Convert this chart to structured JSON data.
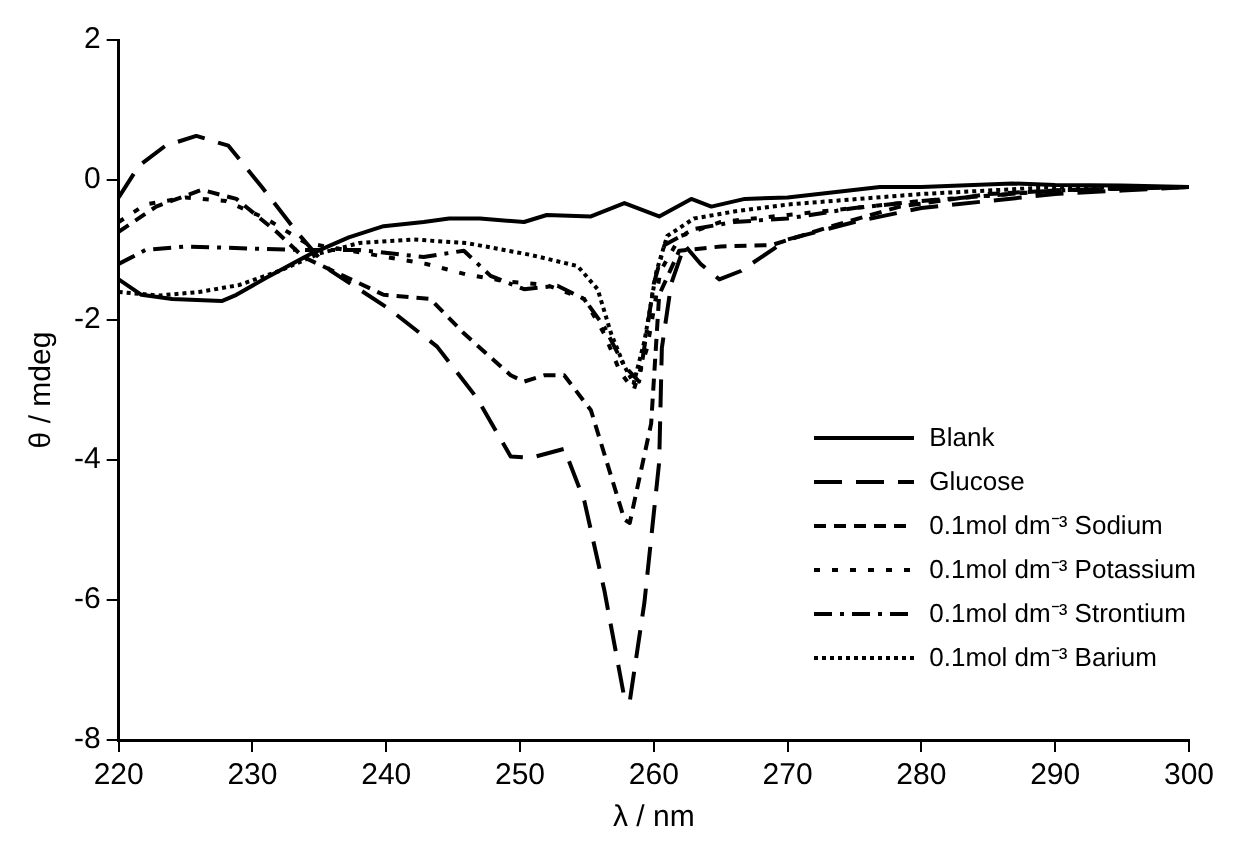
{
  "chart_data": {
    "type": "line",
    "xlabel": "λ / nm",
    "ylabel": "θ / mdeg",
    "xlim": [
      220,
      300
    ],
    "xticks": [
      220,
      230,
      240,
      250,
      260,
      270,
      280,
      290,
      300
    ],
    "ylim": [
      -8,
      2
    ],
    "yticks": [
      -8,
      -6,
      -4,
      -2,
      0,
      2
    ],
    "grid": false,
    "legend": "right",
    "marker": "none",
    "series": [
      {
        "name": "Blank",
        "color": "#000000",
        "line_style": "solid",
        "x": [
          220,
          221.7,
          224,
          227.7,
          228.8,
          231,
          234.2,
          237.2,
          239.8,
          242.8,
          244.7,
          247,
          250.3,
          252,
          255.3,
          257.8,
          260.4,
          262.8,
          264.3,
          266.8,
          270,
          272.8,
          276.9,
          280,
          286.8,
          290,
          295,
          300
        ],
        "values": [
          -1.42,
          -1.64,
          -1.7,
          -1.73,
          -1.64,
          -1.4,
          -1.07,
          -0.82,
          -0.66,
          -0.6,
          -0.55,
          -0.55,
          -0.6,
          -0.5,
          -0.52,
          -0.33,
          -0.52,
          -0.27,
          -0.38,
          -0.27,
          -0.25,
          -0.19,
          -0.1,
          -0.1,
          -0.05,
          -0.07,
          -0.08,
          -0.1
        ]
      },
      {
        "name": "Glucose",
        "color": "#000000",
        "line_style": "dashed",
        "x": [
          220,
          221.5,
          223.5,
          225.8,
          228.2,
          230.7,
          233.3,
          235.8,
          240.2,
          243.8,
          246.8,
          249.3,
          250.8,
          253.3,
          254.8,
          256.3,
          257.8,
          258.2,
          259.3,
          260.4,
          260.6,
          261.3,
          262.3,
          263.5,
          264.9,
          266.5,
          270,
          275,
          280,
          285,
          290,
          295,
          300
        ],
        "values": [
          -0.25,
          0.2,
          0.49,
          0.63,
          0.49,
          -0.1,
          -0.74,
          -1.29,
          -1.84,
          -2.38,
          -3.12,
          -3.95,
          -3.97,
          -3.84,
          -4.58,
          -5.86,
          -7.4,
          -7.45,
          -6.03,
          -4.03,
          -2.4,
          -1.48,
          -0.93,
          -1.2,
          -1.42,
          -1.3,
          -0.85,
          -0.6,
          -0.4,
          -0.3,
          -0.2,
          -0.15,
          -0.1
        ]
      },
      {
        "name": "0.1mol dm⁻³ Sodium",
        "color": "#000000",
        "line_style": "dashed",
        "x": [
          220,
          222.8,
          226.2,
          228.8,
          231.8,
          233.8,
          236.8,
          239.8,
          243.3,
          245.8,
          249.3,
          250.3,
          251.8,
          253.3,
          255.3,
          257.8,
          258.2,
          259.8,
          260.4,
          261.9,
          265,
          268.8,
          273.3,
          278.4,
          285,
          290,
          295,
          300
        ],
        "values": [
          -0.74,
          -0.38,
          -0.14,
          -0.27,
          -0.74,
          -1.1,
          -1.37,
          -1.64,
          -1.7,
          -2.19,
          -2.79,
          -2.88,
          -2.79,
          -2.79,
          -3.29,
          -4.85,
          -4.9,
          -3.48,
          -1.64,
          -1.01,
          -0.95,
          -0.93,
          -0.66,
          -0.38,
          -0.2,
          -0.15,
          -0.12,
          -0.1
        ]
      },
      {
        "name": "0.1mol dm⁻³ Potassium",
        "color": "#000000",
        "line_style": "dotted",
        "x": [
          220,
          222,
          225,
          228,
          231,
          234,
          237,
          240,
          243,
          246,
          249,
          252,
          254.8,
          256.3,
          257.5,
          258.5,
          259.5,
          260.5,
          262,
          265,
          270,
          275,
          280,
          290,
          300
        ],
        "values": [
          -0.6,
          -0.35,
          -0.25,
          -0.3,
          -0.55,
          -0.9,
          -1.0,
          -1.1,
          -1.2,
          -1.35,
          -1.45,
          -1.5,
          -1.7,
          -2.2,
          -2.75,
          -3.0,
          -2.4,
          -1.3,
          -0.8,
          -0.6,
          -0.5,
          -0.4,
          -0.3,
          -0.15,
          -0.1
        ]
      },
      {
        "name": "0.1mol dm⁻³ Strontium",
        "color": "#000000",
        "line_style": "dashed",
        "x": [
          220,
          222,
          225,
          230,
          234,
          238,
          242.8,
          245.8,
          247.8,
          250.3,
          252.8,
          254.8,
          256.3,
          257.8,
          258.9,
          259.3,
          260,
          260.8,
          263,
          266,
          270,
          275,
          280,
          290,
          300
        ],
        "values": [
          -1.2,
          -1.0,
          -0.95,
          -0.98,
          -1.0,
          -1.0,
          -1.1,
          -1.01,
          -1.37,
          -1.56,
          -1.51,
          -1.7,
          -2.1,
          -2.66,
          -2.88,
          -2.38,
          -1.48,
          -0.93,
          -0.7,
          -0.6,
          -0.55,
          -0.4,
          -0.3,
          -0.15,
          -0.1
        ]
      },
      {
        "name": "0.1mol dm⁻³ Barium",
        "color": "#000000",
        "line_style": "dotted",
        "x": [
          220,
          223,
          226,
          229,
          232,
          235,
          238,
          242,
          246,
          250.8,
          254.3,
          255.8,
          256.8,
          257.8,
          258.5,
          259.3,
          260.2,
          261,
          263,
          266,
          270,
          280,
          290,
          300
        ],
        "values": [
          -1.6,
          -1.65,
          -1.6,
          -1.5,
          -1.3,
          -1.05,
          -0.9,
          -0.85,
          -0.9,
          -1.07,
          -1.23,
          -1.56,
          -2.19,
          -2.66,
          -2.9,
          -2.3,
          -1.3,
          -0.8,
          -0.55,
          -0.45,
          -0.35,
          -0.2,
          -0.1,
          -0.1
        ]
      }
    ]
  }
}
